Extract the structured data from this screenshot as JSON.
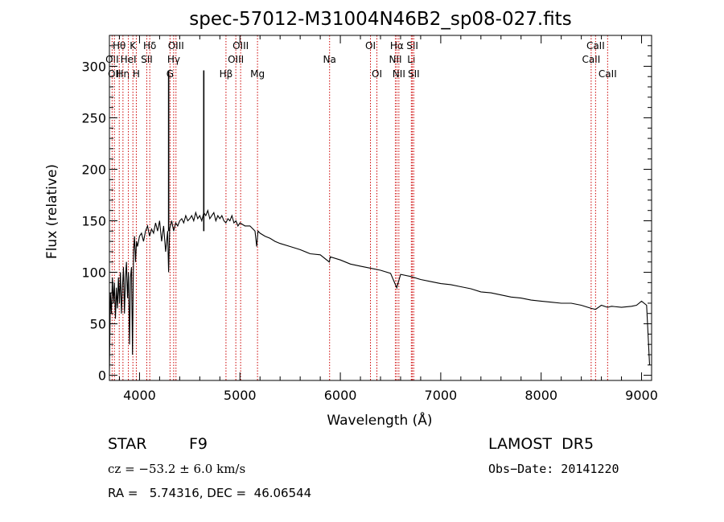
{
  "chart_data": {
    "type": "line",
    "title": "spec-57012-M31004N46B2_sp08-027.fits",
    "xlabel": "Wavelength (Å)",
    "ylabel": "Flux (relative)",
    "xlim": [
      3700,
      9100
    ],
    "ylim": [
      -5,
      330
    ],
    "xticks": [
      4000,
      5000,
      6000,
      7000,
      8000,
      9000
    ],
    "yticks": [
      0,
      50,
      100,
      150,
      200,
      250,
      300
    ],
    "grid": false,
    "line_color": "#000000",
    "marker_color": "#cc0000",
    "series": [
      {
        "x": [
          3700,
          3710,
          3720,
          3730,
          3740,
          3750,
          3760,
          3770,
          3780,
          3790,
          3800,
          3810,
          3820,
          3830,
          3840,
          3850,
          3860,
          3870,
          3880,
          3890,
          3900,
          3910,
          3920,
          3930,
          3940,
          3950,
          3960,
          3970,
          3980,
          3990,
          4000,
          4020,
          4040,
          4060,
          4080,
          4100,
          4120,
          4140,
          4160,
          4180,
          4200,
          4220,
          4240,
          4260,
          4280,
          4290,
          4300,
          4320,
          4340,
          4360,
          4380,
          4400,
          4420,
          4440,
          4460,
          4480,
          4500,
          4520,
          4540,
          4560,
          4580,
          4600,
          4620,
          4640,
          4660,
          4680,
          4700,
          4720,
          4740,
          4760,
          4780,
          4800,
          4820,
          4840,
          4860,
          4880,
          4900,
          4920,
          4940,
          4960,
          4980,
          5000,
          5050,
          5100,
          5150,
          5167,
          5180,
          5200,
          5250,
          5300,
          5350,
          5400,
          5500,
          5600,
          5700,
          5800,
          5890,
          5900,
          6000,
          6100,
          6200,
          6300,
          6400,
          6500,
          6562,
          6600,
          6700,
          6800,
          6900,
          7000,
          7100,
          7200,
          7300,
          7400,
          7500,
          7600,
          7700,
          7800,
          7900,
          8000,
          8100,
          8200,
          8300,
          8400,
          8498,
          8542,
          8600,
          8662,
          8700,
          8800,
          8900,
          8950,
          9000,
          9050,
          9080
        ],
        "y": [
          0,
          80,
          60,
          95,
          70,
          90,
          55,
          85,
          65,
          95,
          70,
          100,
          60,
          85,
          105,
          60,
          95,
          110,
          75,
          100,
          30,
          95,
          105,
          20,
          120,
          135,
          110,
          130,
          125,
          130,
          135,
          138,
          130,
          140,
          145,
          135,
          142,
          138,
          148,
          140,
          150,
          130,
          145,
          120,
          140,
          100,
          142,
          150,
          140,
          148,
          145,
          150,
          152,
          148,
          155,
          150,
          152,
          155,
          150,
          158,
          152,
          155,
          150,
          158,
          155,
          160,
          152,
          155,
          158,
          150,
          155,
          152,
          155,
          150,
          148,
          152,
          150,
          155,
          148,
          150,
          145,
          148,
          145,
          145,
          140,
          125,
          140,
          138,
          135,
          133,
          130,
          128,
          125,
          122,
          118,
          117,
          110,
          115,
          112,
          108,
          106,
          104,
          102,
          99,
          85,
          98,
          96,
          93,
          91,
          89,
          88,
          86,
          84,
          81,
          80,
          78,
          76,
          75,
          73,
          72,
          71,
          70,
          70,
          68,
          65,
          64,
          68,
          66,
          67,
          66,
          67,
          68,
          72,
          68,
          10
        ],
        "spikes": [
          {
            "x": 4290,
            "y": 296
          },
          {
            "x": 4640,
            "y": 296
          }
        ]
      }
    ],
    "lines": [
      {
        "wave": 3727,
        "label": "OII",
        "row": 1
      },
      {
        "wave": 3750,
        "label": "OII",
        "row": 2
      },
      {
        "wave": 3798,
        "label": "Hθ",
        "row": 0
      },
      {
        "wave": 3835,
        "label": "Hη",
        "row": 2
      },
      {
        "wave": 3889,
        "label": "HeI",
        "row": 1
      },
      {
        "wave": 3934,
        "label": "K",
        "row": 0
      },
      {
        "wave": 3968,
        "label": "H",
        "row": 2
      },
      {
        "wave": 4072,
        "label": "SII",
        "row": 1
      },
      {
        "wave": 4102,
        "label": "Hδ",
        "row": 0
      },
      {
        "wave": 4304,
        "label": "G",
        "row": 2
      },
      {
        "wave": 4340,
        "label": "Hγ",
        "row": 1
      },
      {
        "wave": 4363,
        "label": "OIII",
        "row": 0
      },
      {
        "wave": 4861,
        "label": "Hβ",
        "row": 2
      },
      {
        "wave": 4959,
        "label": "OIII",
        "row": 1
      },
      {
        "wave": 5007,
        "label": "OIII",
        "row": 0
      },
      {
        "wave": 5175,
        "label": "Mg",
        "row": 2
      },
      {
        "wave": 5893,
        "label": "Na",
        "row": 1
      },
      {
        "wave": 6300,
        "label": "OI",
        "row": 0
      },
      {
        "wave": 6364,
        "label": "OI",
        "row": 2
      },
      {
        "wave": 6548,
        "label": "NII",
        "row": 1
      },
      {
        "wave": 6563,
        "label": "Hα",
        "row": 0
      },
      {
        "wave": 6583,
        "label": "NII",
        "row": 2
      },
      {
        "wave": 6707,
        "label": "Li",
        "row": 1
      },
      {
        "wave": 6717,
        "label": "SII",
        "row": 0
      },
      {
        "wave": 6731,
        "label": "SII",
        "row": 2
      },
      {
        "wave": 8498,
        "label": "CaII",
        "row": 1
      },
      {
        "wave": 8542,
        "label": "CaII",
        "row": 0
      },
      {
        "wave": 8662,
        "label": "CaII",
        "row": 2
      }
    ]
  },
  "info": {
    "object_class": "STAR",
    "subclass": "F9",
    "survey": "LAMOST  DR5",
    "cz": "cz = −53.2 ± 6.0 km/s",
    "obs_date": "Obs−Date: 20141220",
    "coords": "RA =   5.74316, DEC =  46.06544"
  }
}
